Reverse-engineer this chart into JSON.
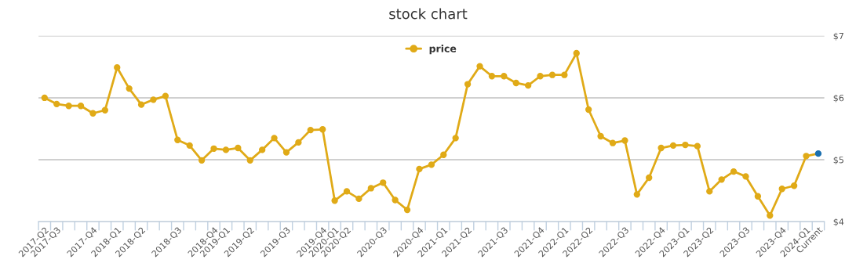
{
  "chart_data": {
    "type": "line",
    "title": "stock chart",
    "categories": [
      "2017-Q2",
      "2017-Q3",
      null,
      null,
      "2017-Q4",
      null,
      "2018-Q1",
      null,
      "2018-Q2",
      null,
      null,
      "2018-Q3",
      null,
      null,
      "2018-Q4",
      "2019-Q1",
      null,
      "2019-Q2",
      null,
      null,
      "2019-Q3",
      null,
      null,
      "2019-Q4",
      "2020-Q1",
      "2020-Q2",
      null,
      null,
      "2020-Q3",
      null,
      null,
      "2020-Q4",
      null,
      "2021-Q1",
      null,
      "2021-Q2",
      null,
      null,
      "2021-Q3",
      null,
      null,
      "2021-Q4",
      null,
      "2022-Q1",
      null,
      "2022-Q2",
      null,
      null,
      "2022-Q3",
      null,
      null,
      "2022-Q4",
      null,
      "2023-Q1",
      null,
      "2023-Q2",
      null,
      null,
      "2023-Q3",
      null,
      null,
      "2023-Q4",
      null,
      "2024-Q1",
      "Current"
    ],
    "series": [
      {
        "name": "price",
        "color": "#e0aa17",
        "values": [
          6.0,
          5.9,
          5.87,
          5.87,
          5.75,
          5.8,
          6.49,
          6.15,
          5.89,
          5.97,
          6.03,
          5.32,
          5.23,
          4.99,
          5.18,
          5.16,
          5.19,
          4.99,
          5.16,
          5.35,
          5.12,
          5.28,
          5.48,
          5.49,
          4.34,
          4.49,
          4.37,
          4.54,
          4.63,
          4.35,
          4.19,
          4.85,
          4.92,
          5.08,
          5.35,
          6.22,
          6.51,
          6.35,
          6.35,
          6.24,
          6.2,
          6.35,
          6.37,
          6.37,
          6.72,
          5.81,
          5.38,
          5.27,
          5.31,
          4.44,
          4.71,
          5.19,
          5.23,
          5.24,
          5.22,
          4.49,
          4.68,
          4.81,
          4.73,
          4.41,
          4.1,
          4.53,
          4.58,
          5.06,
          5.1
        ],
        "colors": [
          "#e0aa17",
          "#e0aa17",
          "#e0aa17",
          "#e0aa17",
          "#e0aa17",
          "#e0aa17",
          "#e0aa17",
          "#e0aa17",
          "#e0aa17",
          "#e0aa17",
          "#e0aa17",
          "#e0aa17",
          "#e0aa17",
          "#e0aa17",
          "#e0aa17",
          "#e0aa17",
          "#e0aa17",
          "#e0aa17",
          "#e0aa17",
          "#e0aa17",
          "#e0aa17",
          "#e0aa17",
          "#e0aa17",
          "#e0aa17",
          "#e0aa17",
          "#e0aa17",
          "#e0aa17",
          "#e0aa17",
          "#e0aa17",
          "#e0aa17",
          "#e0aa17",
          "#e0aa17",
          "#e0aa17",
          "#e0aa17",
          "#e0aa17",
          "#e0aa17",
          "#e0aa17",
          "#e0aa17",
          "#e0aa17",
          "#e0aa17",
          "#e0aa17",
          "#e0aa17",
          "#e0aa17",
          "#e0aa17",
          "#e0aa17",
          "#e0aa17",
          "#e0aa17",
          "#e0aa17",
          "#e0aa17",
          "#e0aa17",
          "#e0aa17",
          "#e0aa17",
          "#e0aa17",
          "#e0aa17",
          "#e0aa17",
          "#e0aa17",
          "#e0aa17",
          "#e0aa17",
          "#e0aa17",
          "#e0aa17",
          "#e0aa17",
          "#e0aa17",
          "#e0aa17",
          "#e0aa17",
          "#1a6faf"
        ]
      }
    ],
    "ylim": [
      4,
      7
    ],
    "yticks": [
      {
        "value": 4,
        "label": "$4"
      },
      {
        "value": 5,
        "label": "$5"
      },
      {
        "value": 6,
        "label": "$6"
      },
      {
        "value": 7,
        "label": "$7"
      }
    ],
    "grid": "y",
    "legend": "top",
    "marker": "circle",
    "line_style": "solid"
  }
}
